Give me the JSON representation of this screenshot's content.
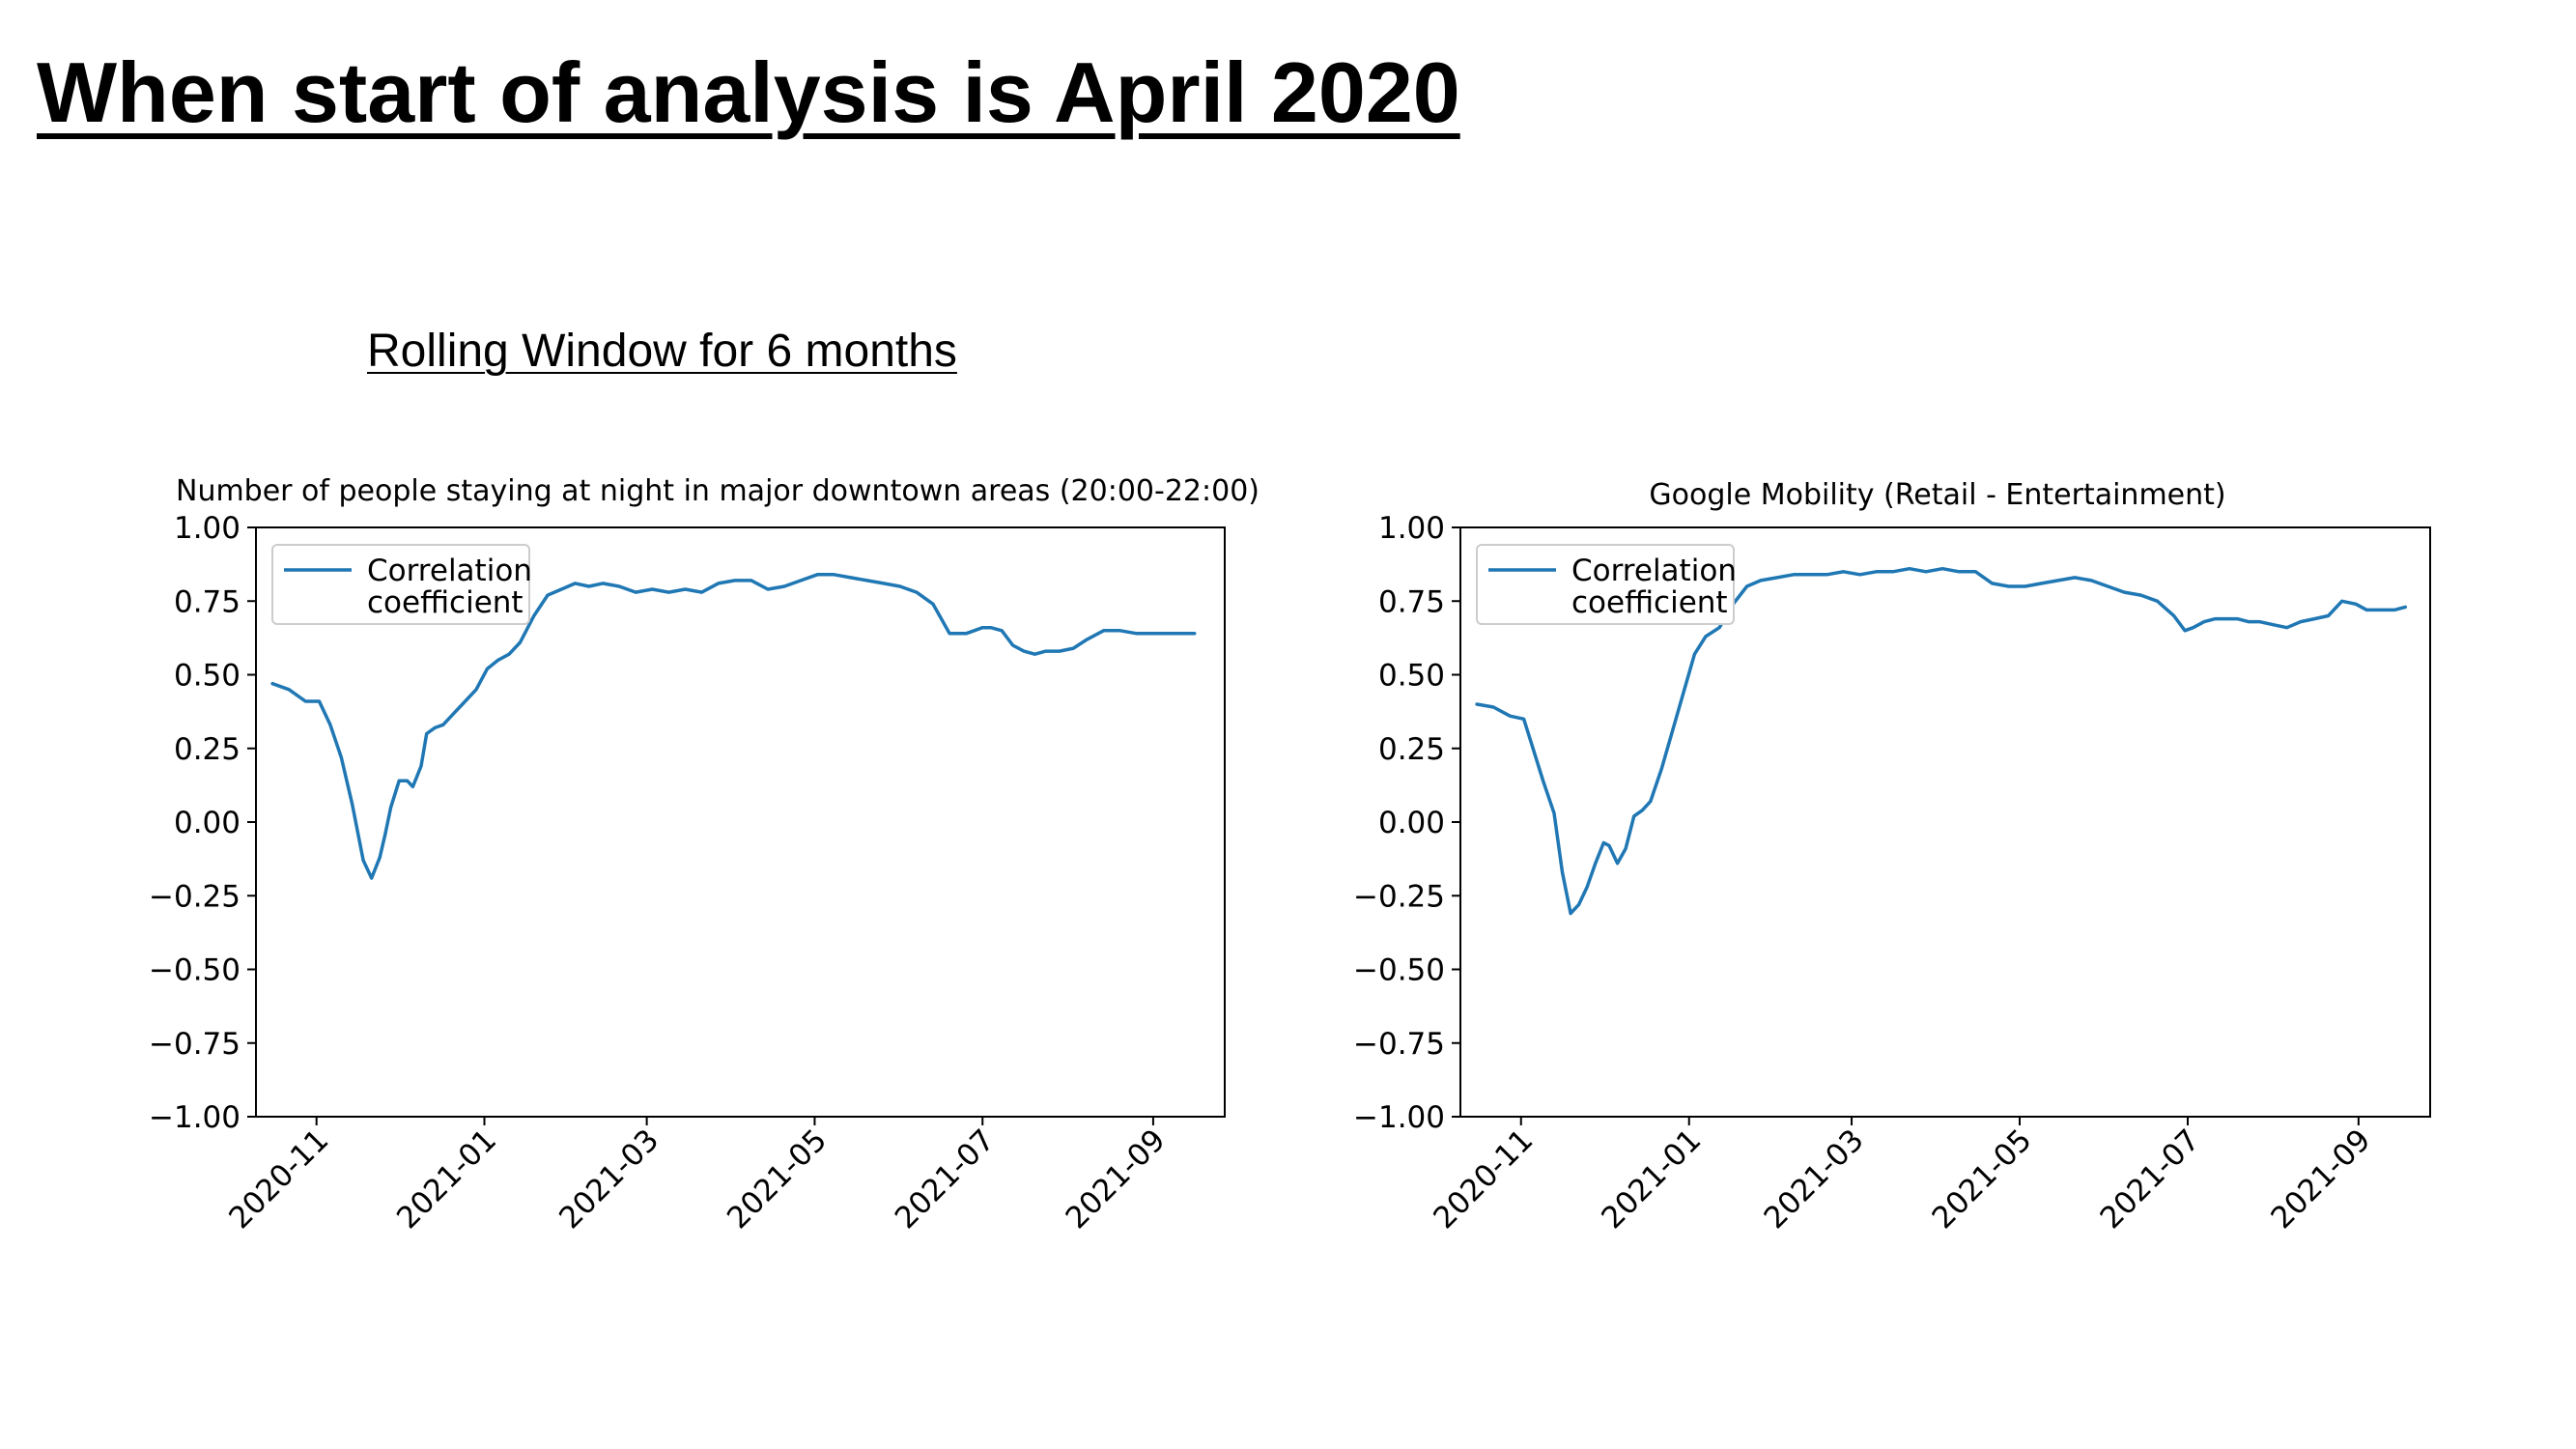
{
  "slide": {
    "title": "When start of analysis is April 2020",
    "subtitle": "Rolling Window for 6 months"
  },
  "chart_data": [
    {
      "type": "line",
      "title": "Number of people staying at night in major downtown areas (20:00-22:00)",
      "xlabel": "",
      "ylabel": "",
      "ylim": [
        -1.0,
        1.0
      ],
      "yticks": [
        "1.00",
        "0.75",
        "0.50",
        "0.25",
        "0.00",
        "−0.25",
        "−0.50",
        "−0.75",
        "−1.00"
      ],
      "xticks": [
        "2020-11",
        "2021-01",
        "2021-03",
        "2021-05",
        "2021-07",
        "2021-09"
      ],
      "xlim": [
        "2020-10-10",
        "2021-09-27"
      ],
      "grid": false,
      "legend": "upper-left",
      "color": "#1f77b4",
      "series": [
        {
          "name": "Correlation\ncoefficient",
          "x": [
            "2020-10-16",
            "2020-10-22",
            "2020-10-28",
            "2020-11-02",
            "2020-11-06",
            "2020-11-10",
            "2020-11-14",
            "2020-11-18",
            "2020-11-21",
            "2020-11-24",
            "2020-11-26",
            "2020-11-28",
            "2020-12-01",
            "2020-12-04",
            "2020-12-06",
            "2020-12-09",
            "2020-12-11",
            "2020-12-14",
            "2020-12-17",
            "2020-12-21",
            "2020-12-25",
            "2020-12-29",
            "2021-01-02",
            "2021-01-06",
            "2021-01-10",
            "2021-01-14",
            "2021-01-19",
            "2021-01-24",
            "2021-01-29",
            "2021-02-03",
            "2021-02-08",
            "2021-02-13",
            "2021-02-19",
            "2021-02-25",
            "2021-03-03",
            "2021-03-09",
            "2021-03-15",
            "2021-03-21",
            "2021-03-27",
            "2021-04-02",
            "2021-04-08",
            "2021-04-14",
            "2021-04-20",
            "2021-04-26",
            "2021-05-02",
            "2021-05-08",
            "2021-05-14",
            "2021-05-20",
            "2021-05-26",
            "2021-06-01",
            "2021-06-07",
            "2021-06-13",
            "2021-06-19",
            "2021-06-25",
            "2021-06-28",
            "2021-07-01",
            "2021-07-04",
            "2021-07-08",
            "2021-07-12",
            "2021-07-16",
            "2021-07-20",
            "2021-07-24",
            "2021-07-29",
            "2021-08-03",
            "2021-08-08",
            "2021-08-14",
            "2021-08-20",
            "2021-08-26",
            "2021-09-01",
            "2021-09-06",
            "2021-09-11",
            "2021-09-16"
          ],
          "y": [
            0.47,
            0.45,
            0.41,
            0.41,
            0.33,
            0.22,
            0.06,
            -0.13,
            -0.19,
            -0.12,
            -0.04,
            0.05,
            0.14,
            0.14,
            0.12,
            0.19,
            0.3,
            0.32,
            0.33,
            0.37,
            0.41,
            0.45,
            0.52,
            0.55,
            0.57,
            0.61,
            0.7,
            0.77,
            0.79,
            0.81,
            0.8,
            0.81,
            0.8,
            0.78,
            0.79,
            0.78,
            0.79,
            0.78,
            0.81,
            0.82,
            0.82,
            0.79,
            0.8,
            0.82,
            0.84,
            0.84,
            0.83,
            0.82,
            0.81,
            0.8,
            0.78,
            0.74,
            0.64,
            0.64,
            0.65,
            0.66,
            0.66,
            0.65,
            0.6,
            0.58,
            0.57,
            0.58,
            0.58,
            0.59,
            0.62,
            0.65,
            0.65,
            0.64,
            0.64,
            0.64,
            0.64,
            0.64
          ]
        }
      ]
    },
    {
      "type": "line",
      "title": "Google Mobility (Retail - Entertainment)",
      "xlabel": "",
      "ylabel": "",
      "ylim": [
        -1.0,
        1.0
      ],
      "yticks": [
        "1.00",
        "0.75",
        "0.50",
        "0.25",
        "0.00",
        "−0.25",
        "−0.50",
        "−0.75",
        "−1.00"
      ],
      "xticks": [
        "2020-11",
        "2021-01",
        "2021-03",
        "2021-05",
        "2021-07",
        "2021-09"
      ],
      "xlim": [
        "2020-10-10",
        "2021-09-27"
      ],
      "grid": false,
      "legend": "upper-left",
      "color": "#1f77b4",
      "series": [
        {
          "name": "Correlation\ncoefficient",
          "x": [
            "2020-10-16",
            "2020-10-22",
            "2020-10-28",
            "2020-11-02",
            "2020-11-05",
            "2020-11-09",
            "2020-11-13",
            "2020-11-16",
            "2020-11-19",
            "2020-11-22",
            "2020-11-25",
            "2020-11-28",
            "2020-12-01",
            "2020-12-03",
            "2020-12-06",
            "2020-12-09",
            "2020-12-12",
            "2020-12-15",
            "2020-12-18",
            "2020-12-22",
            "2020-12-26",
            "2020-12-30",
            "2021-01-03",
            "2021-01-07",
            "2021-01-12",
            "2021-01-17",
            "2021-01-22",
            "2021-01-27",
            "2021-02-02",
            "2021-02-08",
            "2021-02-14",
            "2021-02-20",
            "2021-02-26",
            "2021-03-04",
            "2021-03-10",
            "2021-03-16",
            "2021-03-22",
            "2021-03-28",
            "2021-04-03",
            "2021-04-09",
            "2021-04-15",
            "2021-04-21",
            "2021-04-27",
            "2021-05-03",
            "2021-05-09",
            "2021-05-15",
            "2021-05-21",
            "2021-05-27",
            "2021-06-02",
            "2021-06-08",
            "2021-06-14",
            "2021-06-20",
            "2021-06-26",
            "2021-06-30",
            "2021-07-03",
            "2021-07-07",
            "2021-07-11",
            "2021-07-15",
            "2021-07-19",
            "2021-07-23",
            "2021-07-27",
            "2021-08-01",
            "2021-08-06",
            "2021-08-11",
            "2021-08-16",
            "2021-08-21",
            "2021-08-26",
            "2021-08-31",
            "2021-09-04",
            "2021-09-09",
            "2021-09-14",
            "2021-09-18"
          ],
          "y": [
            0.4,
            0.39,
            0.36,
            0.35,
            0.26,
            0.14,
            0.03,
            -0.17,
            -0.31,
            -0.28,
            -0.22,
            -0.14,
            -0.07,
            -0.08,
            -0.14,
            -0.09,
            0.02,
            0.04,
            0.07,
            0.18,
            0.31,
            0.44,
            0.57,
            0.63,
            0.66,
            0.74,
            0.8,
            0.82,
            0.83,
            0.84,
            0.84,
            0.84,
            0.85,
            0.84,
            0.85,
            0.85,
            0.86,
            0.85,
            0.86,
            0.85,
            0.85,
            0.81,
            0.8,
            0.8,
            0.81,
            0.82,
            0.83,
            0.82,
            0.8,
            0.78,
            0.77,
            0.75,
            0.7,
            0.65,
            0.66,
            0.68,
            0.69,
            0.69,
            0.69,
            0.68,
            0.68,
            0.67,
            0.66,
            0.68,
            0.69,
            0.7,
            0.75,
            0.74,
            0.72,
            0.72,
            0.72,
            0.73
          ]
        }
      ]
    }
  ]
}
